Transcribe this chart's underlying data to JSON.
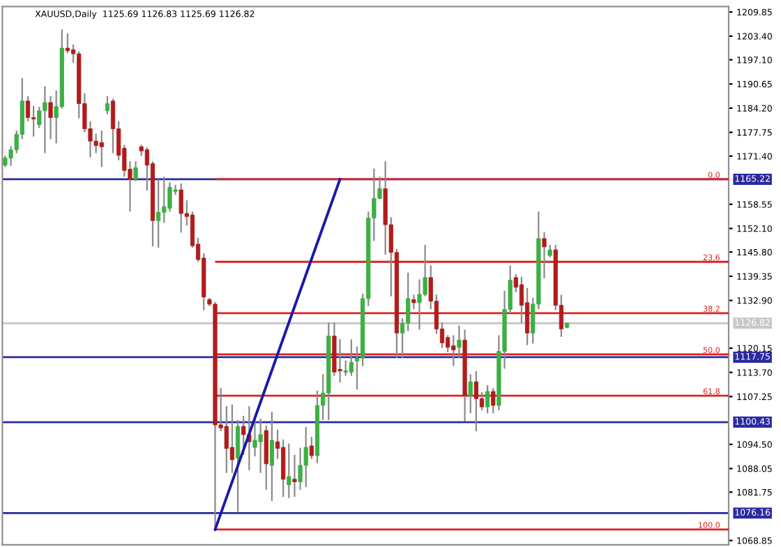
{
  "chart_data": {
    "type": "candlestick",
    "title": "XAUUSD,Daily  1125.69 1126.83 1125.69 1126.82",
    "categories": [
      null,
      null,
      null,
      null,
      null,
      null,
      null,
      null,
      null,
      null,
      null,
      null,
      null,
      null,
      null,
      null,
      null,
      null,
      null,
      null,
      null,
      null,
      null,
      null,
      null,
      null,
      null,
      null,
      null,
      null,
      null,
      null,
      null,
      null,
      null,
      null,
      null,
      null,
      null,
      null,
      null,
      null,
      null,
      null,
      null,
      null,
      null,
      null,
      null,
      null,
      null,
      null,
      null,
      null,
      null,
      null,
      null,
      null,
      null,
      null,
      null,
      null,
      null,
      null,
      null,
      null,
      null,
      null,
      null,
      null,
      null,
      null,
      null,
      null,
      null,
      null,
      null,
      null,
      null,
      null,
      null,
      null,
      null,
      null,
      null,
      null,
      null,
      null,
      null,
      null,
      null,
      null,
      null,
      null,
      null,
      null,
      null,
      null,
      null,
      null,
      null,
      null,
      null,
      null,
      null,
      null,
      null,
      null,
      null,
      null,
      null,
      null,
      null,
      null,
      null,
      null,
      null,
      null,
      null,
      null,
      null,
      null,
      null,
      null,
      null,
      null,
      null,
      null
    ],
    "ohlc": [
      [
        1169.0,
        1171.3,
        1168.7,
        1170.9
      ],
      [
        1170.9,
        1173.9,
        1169.0,
        1173.1
      ],
      [
        1173.1,
        1178.0,
        1172.4,
        1177.2
      ],
      [
        1177.2,
        1192.0,
        1176.1,
        1186.1
      ],
      [
        1186.1,
        1187.2,
        1180.9,
        1181.7
      ],
      [
        1181.7,
        1184.6,
        1176.8,
        1181.3
      ],
      [
        1179.8,
        1184.3,
        1179.1,
        1183.5
      ],
      [
        1183.5,
        1189.8,
        1172.4,
        1185.7
      ],
      [
        1185.7,
        1187.2,
        1176.1,
        1181.7
      ],
      [
        1181.7,
        1188.7,
        1175.0,
        1184.6
      ],
      [
        1184.6,
        1205.0,
        1184.3,
        1200.2
      ],
      [
        1200.2,
        1203.9,
        1199.1,
        1199.5
      ],
      [
        1199.8,
        1201.0,
        1196.5,
        1198.7
      ],
      [
        1198.7,
        1199.1,
        1181.7,
        1185.4
      ],
      [
        1185.4,
        1188.0,
        1178.0,
        1178.7
      ],
      [
        1178.7,
        1180.5,
        1171.3,
        1175.4
      ],
      [
        1175.4,
        1177.2,
        1172.4,
        1174.2
      ],
      [
        1175.0,
        1178.0,
        1168.7,
        1173.9
      ],
      [
        1183.5,
        1187.2,
        1182.8,
        1185.4
      ],
      [
        1186.1,
        1186.5,
        1172.4,
        1178.7
      ],
      [
        1178.7,
        1180.5,
        1170.5,
        1171.6
      ],
      [
        1173.5,
        1174.2,
        1166.1,
        1167.6
      ],
      [
        1167.9,
        1169.8,
        1156.8,
        1165.3
      ],
      [
        1165.3,
        1169.8,
        1165.0,
        1168.3
      ],
      [
        1173.9,
        1174.2,
        1171.6,
        1172.8
      ],
      [
        1173.1,
        1173.5,
        1162.4,
        1169.0
      ],
      [
        1169.4,
        1169.8,
        1147.5,
        1154.2
      ],
      [
        1154.2,
        1165.0,
        1147.2,
        1156.4
      ],
      [
        1156.4,
        1165.7,
        1153.8,
        1157.9
      ],
      [
        1157.5,
        1164.2,
        1156.8,
        1163.1
      ],
      [
        1162.0,
        1163.5,
        1161.3,
        1162.4
      ],
      [
        1162.4,
        1163.9,
        1151.2,
        1156.1
      ],
      [
        1156.1,
        1159.4,
        1153.1,
        1155.3
      ],
      [
        1155.7,
        1156.4,
        1147.2,
        1147.5
      ],
      [
        1147.9,
        1149.4,
        1143.4,
        1143.8
      ],
      [
        1144.2,
        1145.3,
        1130.5,
        1133.8
      ],
      [
        1133.1,
        1133.4,
        1131.6,
        1131.9
      ],
      [
        1131.9,
        1132.3,
        1071.5,
        1099.7
      ],
      [
        1099.7,
        1109.3,
        1098.2,
        1098.9
      ],
      [
        1099.3,
        1104.5,
        1087.1,
        1093.4
      ],
      [
        1093.7,
        1104.9,
        1087.1,
        1090.4
      ],
      [
        1090.8,
        1100.8,
        1076.7,
        1099.3
      ],
      [
        1099.3,
        1101.9,
        1091.9,
        1097.1
      ],
      [
        1097.1,
        1104.5,
        1087.8,
        1095.2
      ],
      [
        1093.7,
        1100.8,
        1091.5,
        1095.6
      ],
      [
        1095.2,
        1101.2,
        1087.1,
        1097.1
      ],
      [
        1098.2,
        1099.3,
        1082.6,
        1089.3
      ],
      [
        1088.9,
        1103.0,
        1079.6,
        1095.6
      ],
      [
        1095.2,
        1098.2,
        1090.8,
        1093.4
      ],
      [
        1093.7,
        1095.6,
        1080.7,
        1085.2
      ],
      [
        1083.7,
        1094.5,
        1080.4,
        1085.9
      ],
      [
        1085.2,
        1091.5,
        1080.7,
        1084.5
      ],
      [
        1084.5,
        1093.4,
        1082.6,
        1088.9
      ],
      [
        1088.9,
        1098.9,
        1083.3,
        1093.7
      ],
      [
        1094.1,
        1096.3,
        1090.8,
        1091.5
      ],
      [
        1091.5,
        1108.6,
        1089.7,
        1104.9
      ],
      [
        1104.9,
        1113.0,
        1101.2,
        1108.2
      ],
      [
        1108.2,
        1126.8,
        1101.2,
        1123.4
      ],
      [
        1123.4,
        1126.8,
        1113.0,
        1113.8
      ],
      [
        1114.5,
        1122.3,
        1111.2,
        1114.1
      ],
      [
        1113.8,
        1116.7,
        1113.0,
        1114.1
      ],
      [
        1113.8,
        1122.3,
        1113.0,
        1116.4
      ],
      [
        1116.7,
        1120.4,
        1109.3,
        1117.5
      ],
      [
        1117.5,
        1134.5,
        1115.6,
        1133.4
      ],
      [
        1133.4,
        1156.4,
        1131.6,
        1154.9
      ],
      [
        1154.9,
        1167.9,
        1149.0,
        1160.1
      ],
      [
        1160.1,
        1165.7,
        1160.1,
        1162.7
      ],
      [
        1162.7,
        1169.8,
        1145.3,
        1153.1
      ],
      [
        1153.1,
        1154.9,
        1134.2,
        1145.7
      ],
      [
        1145.7,
        1146.4,
        1117.8,
        1124.2
      ],
      [
        1124.2,
        1127.9,
        1117.8,
        1126.8
      ],
      [
        1126.8,
        1140.1,
        1124.9,
        1133.4
      ],
      [
        1133.1,
        1134.2,
        1130.8,
        1132.3
      ],
      [
        1132.3,
        1138.3,
        1125.3,
        1134.5
      ],
      [
        1134.5,
        1147.5,
        1134.2,
        1139.0
      ],
      [
        1139.0,
        1142.0,
        1130.8,
        1132.7
      ],
      [
        1132.7,
        1134.2,
        1124.2,
        1125.3
      ],
      [
        1125.3,
        1126.8,
        1120.4,
        1121.6
      ],
      [
        1123.0,
        1123.4,
        1119.3,
        1120.4
      ],
      [
        1120.8,
        1123.4,
        1115.6,
        1119.7
      ],
      [
        1120.4,
        1126.0,
        1117.8,
        1122.3
      ],
      [
        1122.3,
        1124.9,
        1100.8,
        1107.5
      ],
      [
        1107.5,
        1113.0,
        1103.0,
        1111.2
      ],
      [
        1111.2,
        1113.8,
        1098.2,
        1106.7
      ],
      [
        1106.7,
        1108.2,
        1103.8,
        1104.5
      ],
      [
        1104.5,
        1110.1,
        1103.0,
        1108.6
      ],
      [
        1108.6,
        1109.3,
        1103.0,
        1104.9
      ],
      [
        1104.9,
        1123.4,
        1103.8,
        1119.3
      ],
      [
        1119.3,
        1135.3,
        1114.9,
        1130.5
      ],
      [
        1130.5,
        1142.0,
        1129.7,
        1138.3
      ],
      [
        1139.0,
        1139.7,
        1135.3,
        1136.4
      ],
      [
        1137.1,
        1139.0,
        1127.1,
        1131.6
      ],
      [
        1132.3,
        1136.0,
        1121.2,
        1124.2
      ],
      [
        1124.2,
        1133.4,
        1121.6,
        1131.9
      ],
      [
        1131.9,
        1156.4,
        1130.8,
        1149.4
      ],
      [
        1149.4,
        1150.9,
        1139.0,
        1147.2
      ],
      [
        1144.9,
        1147.5,
        1144.6,
        1146.4
      ],
      [
        1146.4,
        1147.5,
        1130.5,
        1131.6
      ],
      [
        1131.6,
        1134.2,
        1123.4,
        1125.3
      ],
      [
        1125.69,
        1126.83,
        1125.69,
        1126.82
      ],
      null,
      null,
      null,
      null,
      null,
      null,
      null,
      null,
      null,
      null,
      null,
      null,
      null,
      null,
      null,
      null,
      null,
      null,
      null,
      null,
      null,
      null,
      null,
      null,
      null,
      null,
      null,
      null
    ],
    "colors": [
      "#3cb043",
      "#3cb043",
      "#3cb043",
      "#3cb043",
      "#b01c1c",
      "#b01c1c",
      "#3cb043",
      "#3cb043",
      "#b01c1c",
      "#3cb043",
      "#3cb043",
      "#b01c1c",
      "#b01c1c",
      "#b01c1c",
      "#b01c1c",
      "#b01c1c",
      "#b01c1c",
      "#b01c1c",
      "#3cb043",
      "#b01c1c",
      "#b01c1c",
      "#b01c1c",
      "#b01c1c",
      "#3cb043",
      "#b01c1c",
      "#b01c1c",
      "#b01c1c",
      "#3cb043",
      "#3cb043",
      "#3cb043",
      "#3cb043",
      "#b01c1c",
      "#b01c1c",
      "#b01c1c",
      "#b01c1c",
      "#b01c1c",
      "#b01c1c",
      "#b01c1c",
      "#b01c1c",
      "#b01c1c",
      "#b01c1c",
      "#3cb043",
      "#b01c1c",
      "#b01c1c",
      "#3cb043",
      "#3cb043",
      "#b01c1c",
      "#3cb043",
      "#b01c1c",
      "#b01c1c",
      "#3cb043",
      "#b01c1c",
      "#3cb043",
      "#3cb043",
      "#b01c1c",
      "#3cb043",
      "#3cb043",
      "#3cb043",
      "#b01c1c",
      "#b01c1c",
      "#3cb043",
      "#3cb043",
      "#3cb043",
      "#3cb043",
      "#3cb043",
      "#3cb043",
      "#3cb043",
      "#b01c1c",
      "#b01c1c",
      "#b01c1c",
      "#3cb043",
      "#3cb043",
      "#b01c1c",
      "#3cb043",
      "#3cb043",
      "#b01c1c",
      "#b01c1c",
      "#b01c1c",
      "#b01c1c",
      "#b01c1c",
      "#3cb043",
      "#b01c1c",
      "#3cb043",
      "#b01c1c",
      "#b01c1c",
      "#3cb043",
      "#b01c1c",
      "#3cb043",
      "#3cb043",
      "#3cb043",
      "#b01c1c",
      "#b01c1c",
      "#b01c1c",
      "#3cb043",
      "#3cb043",
      "#b01c1c",
      "#3cb043",
      "#b01c1c",
      "#b01c1c",
      "#3cb043",
      null,
      null,
      null,
      null,
      null,
      null,
      null,
      null,
      null,
      null,
      null,
      null,
      null,
      null,
      null,
      null,
      null,
      null,
      null,
      null,
      null,
      null,
      null,
      null,
      null,
      null,
      null,
      null
    ],
    "series": [
      {
        "type": "line",
        "color": "#1a1aa8",
        "values": [
          null,
          null,
          null,
          null,
          null,
          null,
          null,
          null,
          null,
          null,
          null,
          null,
          null,
          null,
          null,
          null,
          null,
          null,
          null,
          null,
          null,
          null,
          null,
          null,
          null,
          null,
          null,
          null,
          null,
          null,
          null,
          null,
          null,
          null,
          null,
          null,
          null,
          1071.8,
          null,
          null,
          null,
          null,
          null,
          null,
          null,
          null,
          null,
          null,
          null,
          null,
          null,
          null,
          null,
          null,
          null,
          null,
          null,
          null,
          null,
          1165.22,
          null,
          null,
          null,
          null,
          null,
          null,
          null,
          null,
          null,
          null,
          null,
          null,
          null,
          null,
          null,
          null,
          null,
          null,
          null,
          null,
          null,
          null,
          null,
          null,
          null,
          null,
          null,
          null,
          null,
          null,
          null,
          null,
          null,
          null,
          null,
          null,
          null,
          null,
          null,
          null,
          null,
          null,
          null,
          null,
          null,
          null,
          null,
          null,
          null,
          null,
          null,
          null,
          null,
          null,
          null,
          null,
          null,
          null,
          null,
          null,
          null,
          null,
          null,
          null,
          null,
          null,
          null,
          null
        ]
      }
    ],
    "ref_lines": [
      {
        "axis": "y",
        "value": 1165.22,
        "label": "1165.22",
        "color": "#2a2aa0"
      },
      {
        "axis": "y",
        "value": 1117.75,
        "label": "1117.75",
        "color": "#2a2aa0"
      },
      {
        "axis": "y",
        "value": 1100.43,
        "label": "1100.43",
        "color": "#2a2aa0"
      },
      {
        "axis": "y",
        "value": 1076.16,
        "label": "1076.16",
        "color": "#2a2aa0"
      },
      {
        "axis": "y",
        "value": 1126.82,
        "label": "1126.82",
        "color": "#c8c8c8"
      },
      {
        "axis": "y",
        "value": 1165.22,
        "label": null,
        "color": "#e02020"
      },
      {
        "axis": "y",
        "value": 1143.2,
        "label": null,
        "color": "#e02020"
      },
      {
        "axis": "y",
        "value": 1129.5,
        "label": null,
        "color": "#e02020"
      },
      {
        "axis": "y",
        "value": 1118.5,
        "label": null,
        "color": "#e02020"
      },
      {
        "axis": "y",
        "value": 1107.5,
        "label": null,
        "color": "#e02020"
      },
      {
        "axis": "y",
        "value": 1071.8,
        "label": null,
        "color": "#e02020"
      }
    ],
    "annotations": [
      {
        "text": "0.0",
        "y": 1165.22
      },
      {
        "text": "23.6",
        "y": 1143.2
      },
      {
        "text": "38.2",
        "y": 1129.5
      },
      {
        "text": "50.0",
        "y": 1118.5
      },
      {
        "text": "61.8",
        "y": 1107.5
      },
      {
        "text": "100.0",
        "y": 1071.8
      }
    ],
    "ylim": [
      1067.7,
      1211.3
    ],
    "yticks": [
      1209.85,
      {
        "value": 1203.4,
        "label": "1203.40"
      },
      {
        "value": 1197.1,
        "label": "1197.10"
      },
      1190.65,
      {
        "value": 1184.2,
        "label": "1184.20"
      },
      1177.75,
      {
        "value": 1171.4,
        "label": "1171.40"
      },
      1158.55,
      {
        "value": 1152.1,
        "label": "1152.10"
      },
      {
        "value": 1145.8,
        "label": "1145.80"
      },
      1139.35,
      {
        "value": 1132.9,
        "label": "1132.90"
      },
      1120.15,
      {
        "value": 1113.7,
        "label": "1113.70"
      },
      1107.25,
      {
        "value": 1094.5,
        "label": "1094.50"
      },
      1088.05,
      1081.75,
      1068.85
    ],
    "grid": false
  }
}
